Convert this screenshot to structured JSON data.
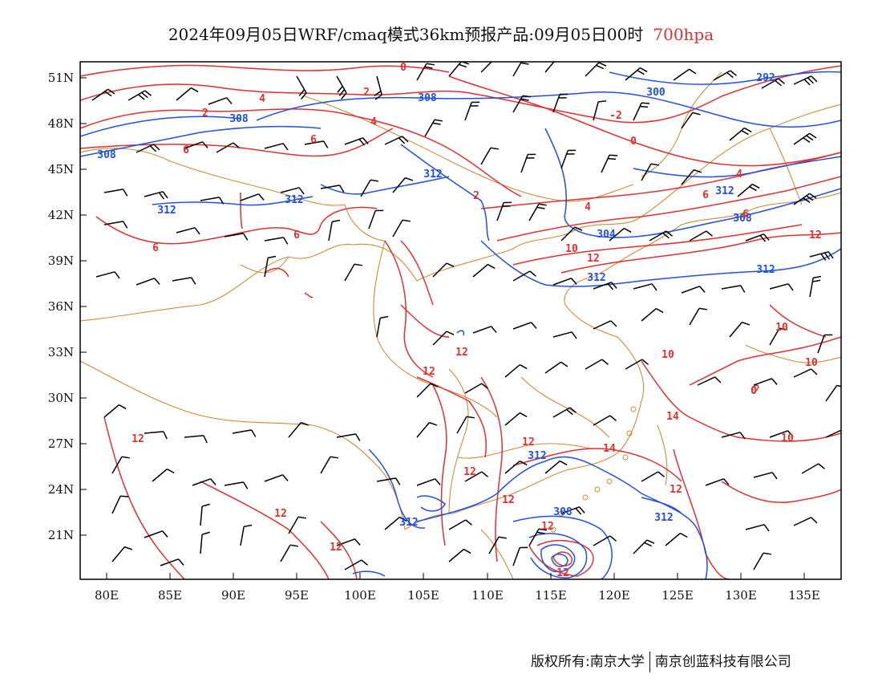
{
  "title": {
    "main": "2024年09月05日WRF/cmaq模式36km预报产品:09月05日00时",
    "level": "700hpa"
  },
  "axes": {
    "x_ticks": [
      "80E",
      "85E",
      "90E",
      "95E",
      "100E",
      "105E",
      "110E",
      "115E",
      "120E",
      "125E",
      "130E",
      "135E"
    ],
    "y_ticks": [
      "51N",
      "48N",
      "45N",
      "42N",
      "39N",
      "36N",
      "33N",
      "30N",
      "27N",
      "24N",
      "21N"
    ]
  },
  "colors": {
    "geopotential": "#2050e0",
    "temperature": "#e03030",
    "boundary": "#d08a3a",
    "wind": "#000000"
  },
  "contour_labels": {
    "geopotential": [
      "292",
      "300",
      "308",
      "308",
      "308",
      "312",
      "312",
      "312",
      "312",
      "308",
      "304",
      "312",
      "312",
      "312",
      "312",
      "312",
      "308"
    ],
    "temperature": [
      "0",
      "2",
      "2",
      "4",
      "4",
      "6",
      "6",
      "6",
      "6",
      "2",
      "-2",
      "0",
      "4",
      "4",
      "6",
      "6",
      "10",
      "12",
      "12",
      "10",
      "12",
      "12",
      "12",
      "12",
      "12",
      "12",
      "12",
      "12",
      "12",
      "12",
      "14",
      "14",
      "10",
      "10",
      "10",
      "12",
      "0"
    ]
  },
  "footer": {
    "left": "版权所有:南京大学",
    "right": "南京创蓝科技有限公司"
  }
}
